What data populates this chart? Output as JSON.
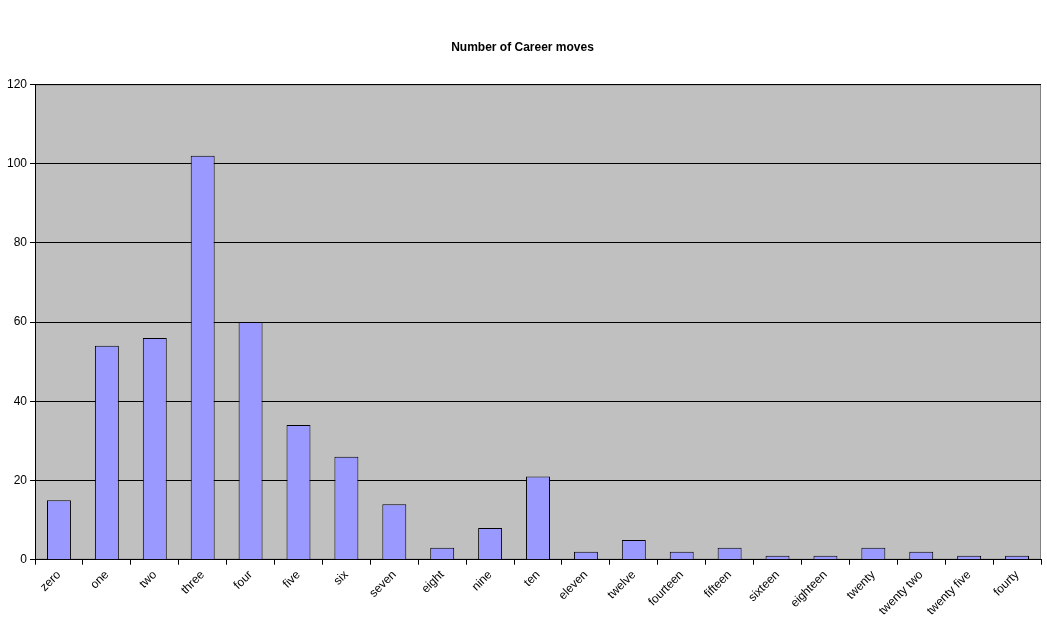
{
  "chart_data": {
    "type": "bar",
    "title": "Number of Career moves",
    "categories": [
      "zero",
      "one",
      "two",
      "three",
      "four",
      "five",
      "six",
      "seven",
      "eight",
      "nine",
      "ten",
      "eleven",
      "twelve",
      "fourteen",
      "fifteen",
      "sixteen",
      "eighteen",
      "twenty",
      "twenty two",
      "twenty five",
      "fourty"
    ],
    "values": [
      15,
      54,
      56,
      102,
      60,
      34,
      26,
      14,
      3,
      8,
      21,
      2,
      5,
      2,
      3,
      1,
      1,
      3,
      2,
      1,
      1
    ],
    "color": "#9999ff",
    "ylim": [
      0,
      120
    ],
    "yticks": [
      0,
      20,
      40,
      60,
      80,
      100,
      120
    ],
    "grid": "y",
    "legend": false
  }
}
